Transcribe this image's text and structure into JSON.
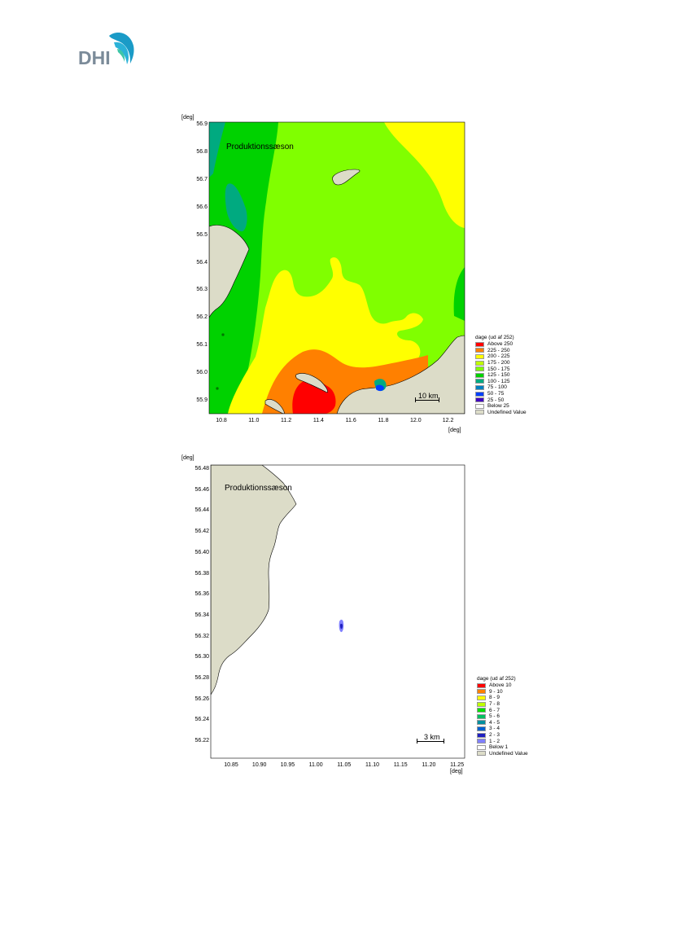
{
  "logo": {
    "text": "DHI"
  },
  "maps": [
    {
      "id": "map1",
      "title": "Produktionssæson",
      "axis_unit_y": "[deg]",
      "axis_unit_x": "[deg]",
      "y_ticks": [
        "56.9",
        "56.8",
        "56.7",
        "56.6",
        "56.5",
        "56.4",
        "56.3",
        "56.2",
        "56.1",
        "56.0",
        "55.9"
      ],
      "x_ticks": [
        "10.8",
        "11.0",
        "11.2",
        "11.4",
        "11.6",
        "11.8",
        "12.0",
        "12.2"
      ],
      "scale_label": "10 km",
      "legend_title": "dage (ud af 252)",
      "legend": [
        {
          "label": "Above 250",
          "color": "#ff0000"
        },
        {
          "label": "225 - 250",
          "color": "#ff8000"
        },
        {
          "label": "200 - 225",
          "color": "#ffff00"
        },
        {
          "label": "175 - 200",
          "color": "#bfff00"
        },
        {
          "label": "150 - 175",
          "color": "#80ff00"
        },
        {
          "label": "125 - 150",
          "color": "#00d200"
        },
        {
          "label": "100 - 125",
          "color": "#00aa80"
        },
        {
          "label": "75 - 100",
          "color": "#0080c0"
        },
        {
          "label": "50 - 75",
          "color": "#0040ff"
        },
        {
          "label": "25 - 50",
          "color": "#4000c0"
        },
        {
          "label": "Below 25",
          "color": "#ffffff"
        },
        {
          "label": "Undefined Value",
          "color": "#dcdcc8"
        }
      ]
    },
    {
      "id": "map2",
      "title": "Produktionssæson",
      "axis_unit_y": "[deg]",
      "axis_unit_x": "[deg]",
      "y_ticks": [
        "56.48",
        "56.46",
        "56.44",
        "56.42",
        "56.40",
        "56.38",
        "56.36",
        "56.34",
        "56.32",
        "56.30",
        "56.28",
        "56.26",
        "56.24",
        "56.22"
      ],
      "x_ticks": [
        "10.85",
        "10.90",
        "10.95",
        "11.00",
        "11.05",
        "11.10",
        "11.15",
        "11.20",
        "11.25"
      ],
      "scale_label": "3 km",
      "legend_title": "dage (ud af 252)",
      "legend": [
        {
          "label": "Above 10",
          "color": "#ff0000"
        },
        {
          "label": "9 - 10",
          "color": "#ff8000"
        },
        {
          "label": "8 - 9",
          "color": "#ffff00"
        },
        {
          "label": "7 - 8",
          "color": "#bfff00"
        },
        {
          "label": "6 - 7",
          "color": "#00e000"
        },
        {
          "label": "5 - 6",
          "color": "#00c060"
        },
        {
          "label": "4 - 5",
          "color": "#0090a0"
        },
        {
          "label": "3 - 4",
          "color": "#0060d0"
        },
        {
          "label": "2 - 3",
          "color": "#2020c0"
        },
        {
          "label": "1 - 2",
          "color": "#8080ff"
        },
        {
          "label": "Below 1",
          "color": "#ffffff"
        },
        {
          "label": "Undefined Value",
          "color": "#dcdcc8"
        }
      ]
    }
  ]
}
